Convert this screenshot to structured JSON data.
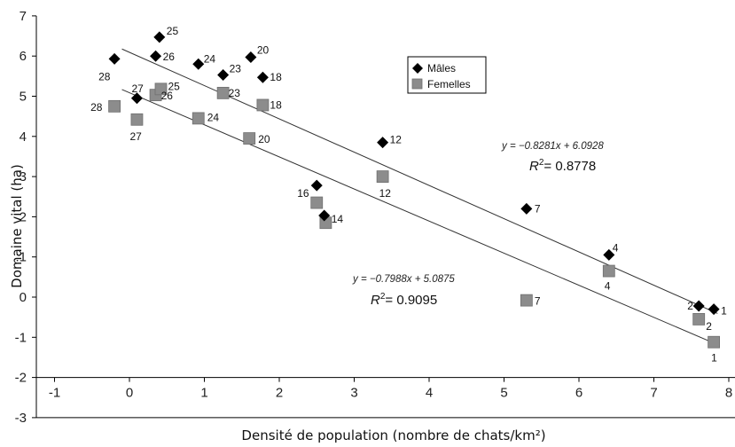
{
  "chart_data": {
    "type": "scatter",
    "xlabel": "Densité de population (nombre de chats/km²)",
    "ylabel": "Domaine vital (ha)",
    "xlim": [
      -1,
      8
    ],
    "ylim": [
      -3,
      7
    ],
    "x_ticks": [
      "-1",
      "0",
      "1",
      "2",
      "3",
      "4",
      "5",
      "6",
      "7",
      "8"
    ],
    "y_ticks": [
      "-3",
      "-2",
      "-1",
      "0",
      ":1",
      "2",
      "3",
      "4",
      "5",
      "6",
      "7"
    ],
    "x_tick_values": [
      -1,
      0,
      1,
      2,
      3,
      4,
      5,
      6,
      7,
      8
    ],
    "y_tick_values": [
      -3,
      -2,
      -1,
      0,
      1,
      2,
      3,
      4,
      5,
      6,
      7
    ],
    "legend_position": "top-center",
    "series": [
      {
        "name": "Mâles",
        "marker": "diamond",
        "color": "#000000",
        "points": [
          {
            "x": -0.2,
            "y": 5.93,
            "label": "28"
          },
          {
            "x": 0.1,
            "y": 4.95,
            "label": "27"
          },
          {
            "x": 0.35,
            "y": 6.0,
            "label": "26"
          },
          {
            "x": 0.4,
            "y": 6.47,
            "label": "25"
          },
          {
            "x": 0.92,
            "y": 5.8,
            "label": "24"
          },
          {
            "x": 1.25,
            "y": 5.53,
            "label": "23"
          },
          {
            "x": 1.62,
            "y": 5.97,
            "label": "20"
          },
          {
            "x": 1.78,
            "y": 5.47,
            "label": "18"
          },
          {
            "x": 3.38,
            "y": 3.85,
            "label": "12"
          },
          {
            "x": 2.5,
            "y": 2.78,
            "label": "16"
          },
          {
            "x": 2.6,
            "y": 2.03,
            "label": "14"
          },
          {
            "x": 5.3,
            "y": 2.2,
            "label": "7"
          },
          {
            "x": 6.4,
            "y": 1.05,
            "label": "4"
          },
          {
            "x": 7.6,
            "y": -0.22,
            "label": "2"
          },
          {
            "x": 7.8,
            "y": -0.3,
            "label": "1"
          }
        ]
      },
      {
        "name": "Femelles",
        "marker": "square",
        "color": "#8c8c8c",
        "points": [
          {
            "x": -0.2,
            "y": 4.75,
            "label": "28"
          },
          {
            "x": 0.1,
            "y": 4.42,
            "label": "27"
          },
          {
            "x": 0.35,
            "y": 5.03,
            "label": "26"
          },
          {
            "x": 0.42,
            "y": 5.18,
            "label": "25"
          },
          {
            "x": 0.92,
            "y": 4.45,
            "label": "24"
          },
          {
            "x": 1.25,
            "y": 5.08,
            "label": "23"
          },
          {
            "x": 1.6,
            "y": 3.95,
            "label": "20"
          },
          {
            "x": 1.78,
            "y": 4.78,
            "label": "18"
          },
          {
            "x": 3.38,
            "y": 3.0,
            "label": "12"
          },
          {
            "x": 2.5,
            "y": 2.35,
            "label": ""
          },
          {
            "x": 2.62,
            "y": 1.85,
            "label": ""
          },
          {
            "x": 5.3,
            "y": -0.08,
            "label": "7"
          },
          {
            "x": 6.4,
            "y": 0.65,
            "label": "4"
          },
          {
            "x": 7.6,
            "y": -0.55,
            "label": "2"
          },
          {
            "x": 7.8,
            "y": -1.12,
            "label": "1"
          }
        ]
      }
    ],
    "trendlines": [
      {
        "series": "Mâles",
        "slope": -0.8281,
        "intercept": 6.0928,
        "x_range": [
          -0.1,
          7.85
        ],
        "equation": "y = −0.8281x + 6.0928",
        "r2_prefix": "R",
        "r2_value": "= 0.8778"
      },
      {
        "series": "Femelles",
        "slope": -0.7988,
        "intercept": 5.0875,
        "x_range": [
          -0.1,
          7.85
        ],
        "equation": "y = −0.7988x + 5.0875",
        "r2_prefix": "R",
        "r2_value": "= 0.9095"
      }
    ]
  }
}
